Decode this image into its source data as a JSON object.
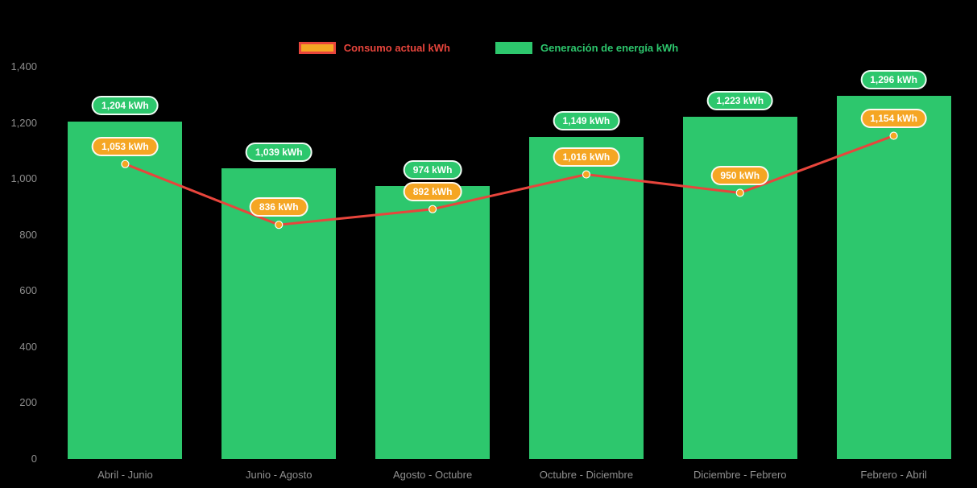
{
  "legend": {
    "items": [
      {
        "label": "Consumo actual kWh",
        "series_type": "line"
      },
      {
        "label": "Generación de energía kWh",
        "series_type": "bar"
      }
    ]
  },
  "chart_data": {
    "type": "bar+line",
    "categories": [
      "Abril - Junio",
      "Junio - Agosto",
      "Agosto - Octubre",
      "Octubre - Diciembre",
      "Diciembre - Febrero",
      "Febrero - Abril"
    ],
    "series": [
      {
        "name": "Generación de energía kWh",
        "type": "bar",
        "color": "#2dc76d",
        "values": [
          1204,
          1039,
          974,
          1149,
          1223,
          1296
        ],
        "labels": [
          "1,204 kWh",
          "1,039 kWh",
          "974 kWh",
          "1,149 kWh",
          "1,223 kWh",
          "1,296 kWh"
        ]
      },
      {
        "name": "Consumo actual kWh",
        "type": "line",
        "color": "#e8453c",
        "marker_color": "#f5a623",
        "values": [
          1053,
          836,
          892,
          1016,
          950,
          1154
        ],
        "labels": [
          "1,053 kWh",
          "836 kWh",
          "892 kWh",
          "1,016 kWh",
          "950 kWh",
          "1,154 kWh"
        ]
      }
    ],
    "y_axis": {
      "min": 0,
      "max": 1400,
      "tick_step": 200,
      "tick_labels": [
        "0",
        "200",
        "400",
        "600",
        "800",
        "1,000",
        "1,200",
        "1,400"
      ]
    },
    "grid": false,
    "legend_position": "top-center",
    "background": "#000000"
  },
  "colors": {
    "bar": "#2dc76d",
    "line": "#e8453c",
    "marker": "#f5a623",
    "axis_text": "#8f8f8f",
    "pill_text": "#ffffff",
    "background": "#000000"
  }
}
